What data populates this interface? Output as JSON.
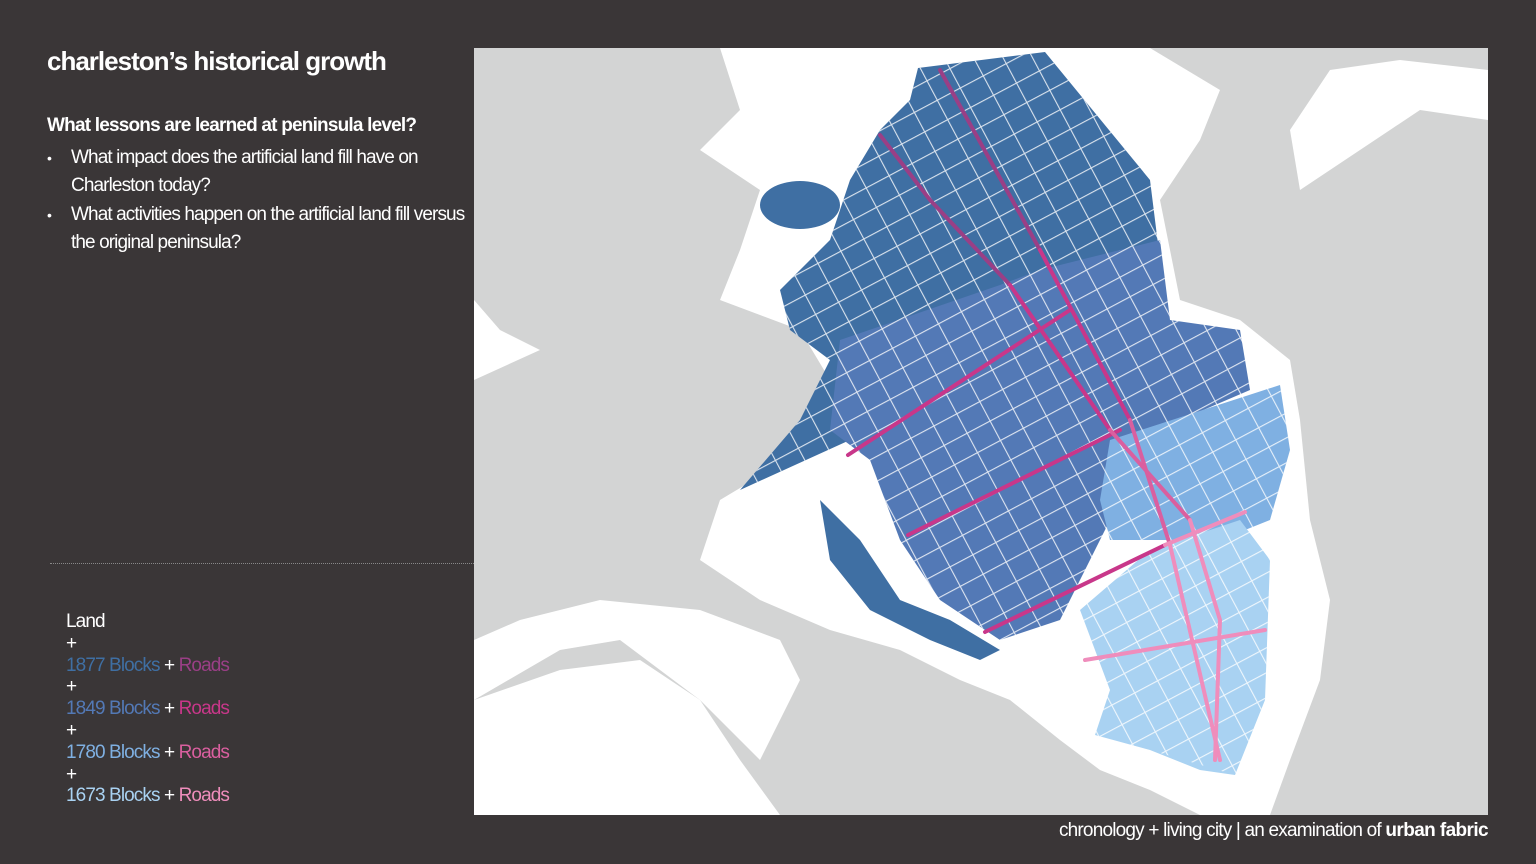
{
  "header": {
    "title": "charleston’s historical growth"
  },
  "questions": {
    "heading": "What lessons are learned at peninsula level?",
    "bullets": [
      "What impact does the artificial land fill have on Charleston today?",
      "What activities happen on the artificial land fill versus the original peninsula?"
    ]
  },
  "legend": {
    "base": "Land",
    "entries": [
      {
        "plus": "+",
        "blocks": "1877 Blocks",
        "join": "+",
        "roads": "Roads",
        "block_color": "#3f6fa3",
        "road_color": "#9a3f86"
      },
      {
        "plus": "+",
        "blocks": "1849 Blocks",
        "join": "+",
        "roads": "Roads",
        "block_color": "#5379b6",
        "road_color": "#c8378a"
      },
      {
        "plus": "+",
        "blocks": "1780 Blocks",
        "join": "+",
        "roads": "Roads",
        "block_color": "#7fb0e2",
        "road_color": "#da5f9f"
      },
      {
        "plus": "+",
        "blocks": "1673  Blocks",
        "join": "+",
        "roads": "Roads",
        "block_color": "#a9d2f2",
        "road_color": "#ef8dbc"
      }
    ]
  },
  "footer": {
    "text": "chronology + living city | an examination of",
    "emphasis": "urban fabric"
  }
}
